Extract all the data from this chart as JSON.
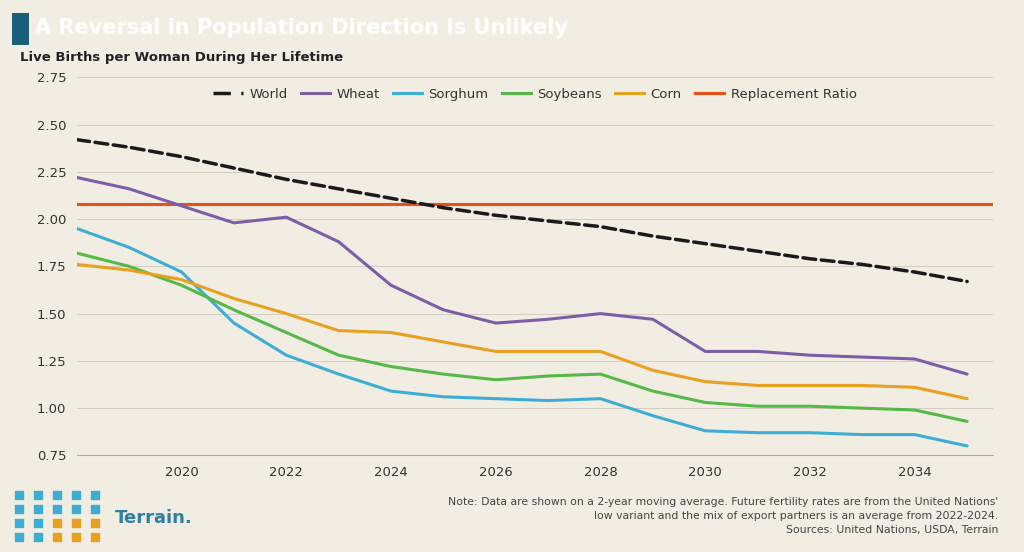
{
  "title": "A Reversal in Population Direction Is Unlikely",
  "ylabel": "Live Births per Woman During Her Lifetime",
  "background_color": "#f2ede3",
  "header_color": "#2e7fa3",
  "header_text_color": "#ffffff",
  "ylim": [
    0.75,
    2.75
  ],
  "yticks": [
    0.75,
    1.0,
    1.25,
    1.5,
    1.75,
    2.0,
    2.25,
    2.5,
    2.75
  ],
  "xlim_start": 2018.0,
  "xlim_end": 2035.5,
  "xticks": [
    2020,
    2022,
    2024,
    2026,
    2028,
    2030,
    2032,
    2034
  ],
  "replacement_ratio": 2.08,
  "replacement_color": "#e8501a",
  "note_line1": "Note: Data are shown on a 2-year moving average. Future fertility rates are from the United Nations'",
  "note_line2": "low variant and the mix of export partners is an average from 2022-2024.",
  "note_line3": "Sources: United Nations, USDA, Terrain",
  "series": {
    "World": {
      "color": "#1a1a1a",
      "linestyle": "dashed",
      "linewidth": 2.5,
      "x": [
        2018,
        2019,
        2020,
        2021,
        2022,
        2023,
        2024,
        2025,
        2026,
        2027,
        2028,
        2029,
        2030,
        2031,
        2032,
        2033,
        2034,
        2035
      ],
      "y": [
        2.42,
        2.38,
        2.33,
        2.27,
        2.21,
        2.16,
        2.11,
        2.06,
        2.02,
        1.99,
        1.96,
        1.91,
        1.87,
        1.83,
        1.79,
        1.76,
        1.72,
        1.67
      ]
    },
    "Wheat": {
      "color": "#7b5ea7",
      "linestyle": "solid",
      "linewidth": 2.2,
      "x": [
        2018,
        2019,
        2020,
        2021,
        2022,
        2023,
        2024,
        2025,
        2026,
        2027,
        2028,
        2029,
        2030,
        2031,
        2032,
        2033,
        2034,
        2035
      ],
      "y": [
        2.22,
        2.16,
        2.07,
        1.98,
        2.01,
        1.88,
        1.65,
        1.52,
        1.45,
        1.47,
        1.5,
        1.47,
        1.3,
        1.3,
        1.28,
        1.27,
        1.26,
        1.18
      ]
    },
    "Sorghum": {
      "color": "#3eadd4",
      "linestyle": "solid",
      "linewidth": 2.2,
      "x": [
        2018,
        2019,
        2020,
        2021,
        2022,
        2023,
        2024,
        2025,
        2026,
        2027,
        2028,
        2029,
        2030,
        2031,
        2032,
        2033,
        2034,
        2035
      ],
      "y": [
        1.95,
        1.85,
        1.72,
        1.45,
        1.28,
        1.18,
        1.09,
        1.06,
        1.05,
        1.04,
        1.05,
        0.96,
        0.88,
        0.87,
        0.87,
        0.86,
        0.86,
        0.8
      ]
    },
    "Soybeans": {
      "color": "#55b848",
      "linestyle": "solid",
      "linewidth": 2.2,
      "x": [
        2018,
        2019,
        2020,
        2021,
        2022,
        2023,
        2024,
        2025,
        2026,
        2027,
        2028,
        2029,
        2030,
        2031,
        2032,
        2033,
        2034,
        2035
      ],
      "y": [
        1.82,
        1.75,
        1.65,
        1.52,
        1.4,
        1.28,
        1.22,
        1.18,
        1.15,
        1.17,
        1.18,
        1.09,
        1.03,
        1.01,
        1.01,
        1.0,
        0.99,
        0.93
      ]
    },
    "Corn": {
      "color": "#e8a020",
      "linestyle": "solid",
      "linewidth": 2.2,
      "x": [
        2018,
        2019,
        2020,
        2021,
        2022,
        2023,
        2024,
        2025,
        2026,
        2027,
        2028,
        2029,
        2030,
        2031,
        2032,
        2033,
        2034,
        2035
      ],
      "y": [
        1.76,
        1.73,
        1.68,
        1.58,
        1.5,
        1.41,
        1.4,
        1.35,
        1.3,
        1.3,
        1.3,
        1.2,
        1.14,
        1.12,
        1.12,
        1.12,
        1.11,
        1.05
      ]
    }
  }
}
